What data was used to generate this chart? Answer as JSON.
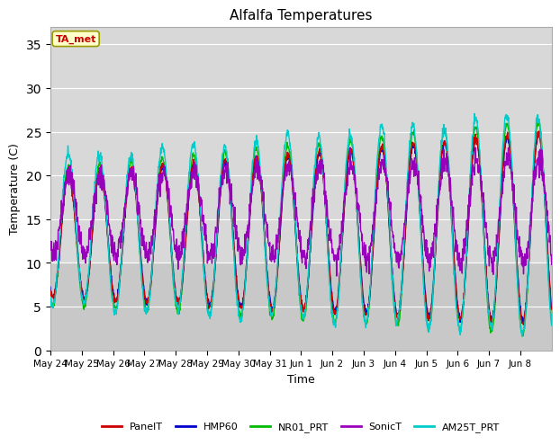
{
  "title": "Alfalfa Temperatures",
  "xlabel": "Time",
  "ylabel": "Temperature (C)",
  "ylim": [
    0,
    37
  ],
  "yticks": [
    0,
    5,
    10,
    15,
    20,
    25,
    30,
    35
  ],
  "background_color": "#ffffff",
  "plot_bg_upper": "#d8d8d8",
  "plot_bg_lower": "#c8c8c8",
  "series_colors": {
    "PanelT": "#cc0000",
    "HMP60": "#0000cc",
    "NR01_PRT": "#00bb00",
    "SonicT": "#9900bb",
    "AM25T_PRT": "#00cccc"
  },
  "annotation_text": "TA_met",
  "annotation_color": "#cc0000",
  "annotation_bg": "#ffffcc",
  "annotation_border": "#999900",
  "x_tick_labels": [
    "May 24",
    "May 25",
    "May 26",
    "May 27",
    "May 28",
    "May 29",
    "May 30",
    "May 31",
    "Jun 1",
    "Jun 2",
    "Jun 3",
    "Jun 4",
    "Jun 5",
    "Jun 6",
    "Jun 7",
    "Jun 8"
  ],
  "legend_entries": [
    "PanelT",
    "HMP60",
    "NR01_PRT",
    "SonicT",
    "AM25T_PRT"
  ]
}
